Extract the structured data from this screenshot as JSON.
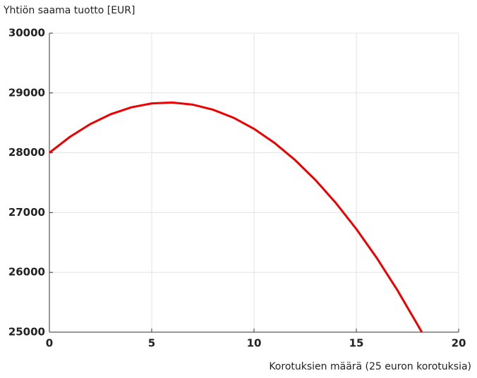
{
  "chart_data": {
    "type": "line",
    "ylabel": "Yhtiön saama tuotto [EUR]",
    "xlabel": "Korotuksien määrä (25 euron korotuksia)",
    "x": [
      0,
      1,
      2,
      3,
      4,
      5,
      6,
      7,
      8,
      9,
      10,
      11,
      12,
      13,
      14,
      15,
      16,
      17,
      18,
      18.2
    ],
    "series": [
      {
        "color": "#ee0000",
        "values": [
          28000,
          28265,
          28480,
          28645,
          28760,
          28825,
          28840,
          28805,
          28720,
          28585,
          28400,
          28165,
          27880,
          27545,
          27160,
          26725,
          26240,
          25705,
          25120,
          25000
        ]
      }
    ],
    "xlim": [
      0,
      20
    ],
    "xticks": [
      0,
      5,
      10,
      15,
      20
    ],
    "ylim": [
      25000,
      30000
    ],
    "yticks": [
      25000,
      26000,
      27000,
      28000,
      29000,
      30000
    ],
    "grid": true
  }
}
